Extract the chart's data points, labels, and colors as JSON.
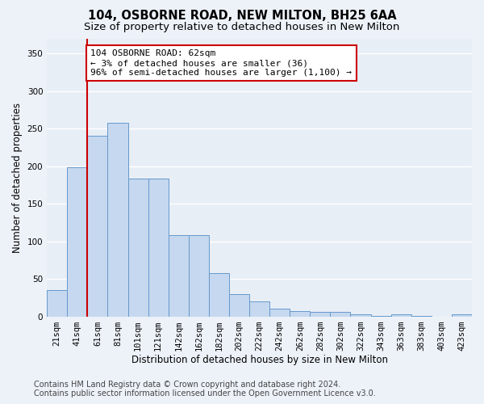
{
  "title": "104, OSBORNE ROAD, NEW MILTON, BH25 6AA",
  "subtitle": "Size of property relative to detached houses in New Milton",
  "xlabel": "Distribution of detached houses by size in New Milton",
  "ylabel": "Number of detached properties",
  "categories": [
    "21sqm",
    "41sqm",
    "61sqm",
    "81sqm",
    "101sqm",
    "121sqm",
    "142sqm",
    "162sqm",
    "182sqm",
    "202sqm",
    "222sqm",
    "242sqm",
    "262sqm",
    "282sqm",
    "302sqm",
    "322sqm",
    "343sqm",
    "363sqm",
    "383sqm",
    "403sqm",
    "423sqm"
  ],
  "values": [
    35,
    199,
    240,
    258,
    183,
    183,
    108,
    108,
    58,
    30,
    20,
    10,
    7,
    6,
    6,
    3,
    1,
    3,
    1,
    0,
    3
  ],
  "bar_color": "#c5d8ef",
  "bar_edge_color": "#6699cc",
  "vline_x_index": 1.5,
  "vline_color": "#cc0000",
  "annotation_text": "104 OSBORNE ROAD: 62sqm\n← 3% of detached houses are smaller (36)\n96% of semi-detached houses are larger (1,100) →",
  "annotation_box_color": "#ffffff",
  "annotation_box_edge_color": "#cc0000",
  "ylim": [
    0,
    370
  ],
  "yticks": [
    0,
    50,
    100,
    150,
    200,
    250,
    300,
    350
  ],
  "footer_line1": "Contains HM Land Registry data © Crown copyright and database right 2024.",
  "footer_line2": "Contains public sector information licensed under the Open Government Licence v3.0.",
  "background_color": "#edf2f9",
  "plot_background": "#e8eef6",
  "grid_color": "#ffffff",
  "title_fontsize": 10.5,
  "subtitle_fontsize": 9.5,
  "axis_label_fontsize": 8.5,
  "tick_fontsize": 7.5,
  "footer_fontsize": 7.0,
  "annotation_fontsize": 8.0
}
